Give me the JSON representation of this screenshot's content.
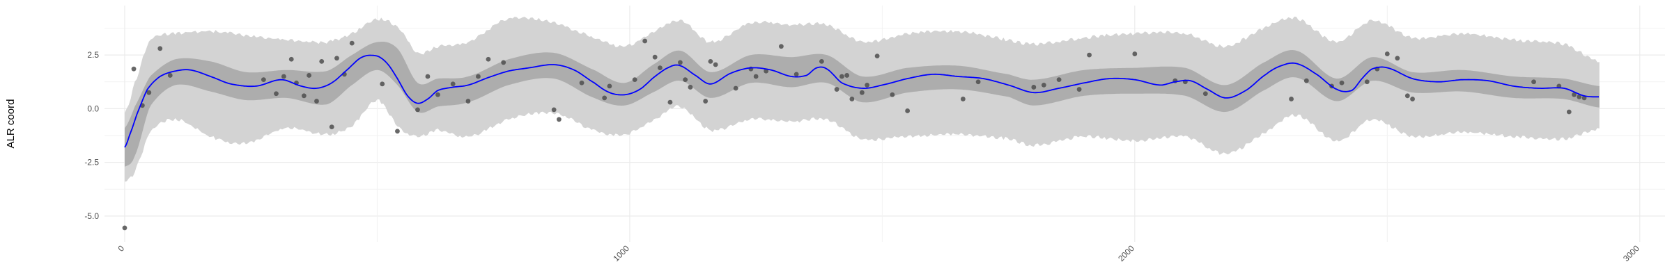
{
  "chart_data": {
    "type": "line",
    "title": "",
    "xlabel": "",
    "ylabel": "ALR coord",
    "xlim": [
      -40,
      3050
    ],
    "ylim": [
      -6.2,
      4.8
    ],
    "x_ticks": [
      0,
      1000,
      2000,
      3000
    ],
    "x_tick_labels": [
      "0",
      "1000",
      "2000",
      "3000"
    ],
    "y_ticks": [
      -5.0,
      -2.5,
      0.0,
      2.5
    ],
    "y_tick_labels": [
      "-5.0",
      "-2.5",
      "0.0",
      "2.5"
    ],
    "grid": true,
    "legend": "none",
    "colors": {
      "mean_line": "#0000ff",
      "outer_band": "#d3d3d3",
      "inner_band": "#a9a9a9",
      "points": "#4d4d4d",
      "grid": "#ebebeb"
    },
    "mean_line": {
      "x": [
        0,
        10,
        25,
        45,
        70,
        100,
        130,
        170,
        210,
        260,
        310,
        350,
        380,
        410,
        440,
        470,
        500,
        520,
        540,
        560,
        580,
        600,
        620,
        650,
        680,
        720,
        760,
        800,
        850,
        890,
        930,
        960,
        990,
        1020,
        1050,
        1080,
        1100,
        1130,
        1160,
        1200,
        1240,
        1280,
        1320,
        1350,
        1370,
        1390,
        1420,
        1460,
        1500,
        1550,
        1600,
        1650,
        1700,
        1750,
        1800,
        1850,
        1900,
        1950,
        2000,
        2050,
        2080,
        2110,
        2140,
        2180,
        2220,
        2260,
        2290,
        2320,
        2360,
        2400,
        2430,
        2450,
        2470,
        2500,
        2550,
        2600,
        2650,
        2700,
        2750,
        2800,
        2850,
        2890,
        2920
      ],
      "y": [
        -1.8,
        -1.2,
        -0.2,
        0.9,
        1.5,
        1.75,
        1.8,
        1.5,
        1.15,
        1.05,
        1.35,
        1.05,
        0.95,
        1.2,
        1.8,
        2.4,
        2.45,
        2.1,
        1.4,
        0.6,
        0.25,
        0.45,
        0.85,
        1.0,
        1.1,
        1.45,
        1.75,
        1.9,
        2.05,
        1.8,
        1.2,
        0.75,
        0.65,
        0.9,
        1.5,
        1.95,
        2.0,
        1.55,
        1.15,
        1.65,
        1.9,
        1.8,
        1.5,
        1.55,
        1.9,
        1.85,
        1.2,
        0.95,
        1.1,
        1.4,
        1.6,
        1.5,
        1.4,
        1.1,
        0.75,
        0.95,
        1.2,
        1.4,
        1.35,
        1.1,
        1.25,
        1.3,
        0.95,
        0.5,
        0.85,
        1.6,
        2.0,
        2.1,
        1.6,
        0.9,
        0.85,
        1.4,
        1.85,
        1.9,
        1.4,
        1.25,
        1.35,
        1.3,
        1.05,
        0.95,
        0.95,
        0.6,
        0.55
      ]
    },
    "inner_band": {
      "x": [
        0,
        20,
        50,
        100,
        170,
        240,
        320,
        400,
        450,
        500,
        540,
        580,
        620,
        680,
        760,
        850,
        930,
        990,
        1050,
        1100,
        1160,
        1240,
        1320,
        1390,
        1460,
        1550,
        1650,
        1750,
        1800,
        1900,
        2000,
        2100,
        2180,
        2260,
        2320,
        2400,
        2470,
        2550,
        2650,
        2750,
        2850,
        2920
      ],
      "upper": [
        -0.9,
        0.1,
        1.5,
        2.3,
        2.2,
        1.7,
        1.8,
        1.75,
        2.5,
        3.1,
        2.8,
        1.2,
        1.4,
        1.5,
        2.3,
        2.6,
        1.8,
        1.2,
        2.1,
        2.7,
        1.7,
        2.5,
        2.4,
        2.5,
        1.5,
        1.9,
        2.0,
        1.6,
        1.35,
        1.8,
        1.9,
        1.9,
        1.1,
        2.2,
        2.7,
        1.4,
        2.4,
        1.7,
        1.8,
        1.5,
        1.4,
        1.05
      ],
      "lower": [
        -2.7,
        -2.2,
        0.1,
        1.1,
        0.8,
        0.4,
        0.5,
        0.2,
        1.1,
        1.8,
        1.1,
        -0.15,
        0.1,
        0.3,
        1.1,
        1.4,
        0.5,
        0.15,
        0.8,
        1.3,
        0.5,
        1.2,
        1.0,
        1.2,
        0.3,
        0.75,
        0.9,
        0.55,
        0.15,
        0.6,
        0.7,
        0.6,
        -0.15,
        0.9,
        1.45,
        0.35,
        1.3,
        0.75,
        0.8,
        0.5,
        0.45,
        0.05
      ]
    },
    "outer_band": {
      "x": [
        0,
        20,
        50,
        100,
        170,
        240,
        320,
        400,
        450,
        500,
        540,
        580,
        620,
        680,
        760,
        850,
        930,
        990,
        1050,
        1100,
        1160,
        1240,
        1320,
        1390,
        1460,
        1550,
        1650,
        1750,
        1800,
        1900,
        2000,
        2100,
        2180,
        2260,
        2320,
        2400,
        2470,
        2550,
        2650,
        2750,
        2850,
        2920
      ],
      "upper": [
        -0.2,
        1.2,
        3.2,
        3.5,
        3.6,
        3.4,
        3.2,
        3.1,
        3.5,
        4.15,
        3.8,
        2.6,
        2.9,
        3.1,
        4.2,
        4.0,
        3.3,
        2.9,
        3.6,
        4.1,
        3.1,
        4.0,
        3.9,
        3.9,
        3.1,
        3.5,
        3.6,
        3.2,
        3.0,
        3.3,
        3.5,
        3.5,
        2.9,
        3.8,
        4.2,
        3.1,
        4.1,
        3.3,
        3.5,
        3.2,
        3.0,
        2.2
      ],
      "lower": [
        -3.4,
        -2.9,
        -1.1,
        -0.5,
        -1.3,
        -1.6,
        -0.9,
        -1.2,
        -0.8,
        0.4,
        -0.8,
        -1.3,
        -1.0,
        -1.3,
        -0.5,
        -0.2,
        -1.0,
        -1.2,
        -0.5,
        0.1,
        -1.0,
        -0.5,
        -0.6,
        -0.5,
        -1.4,
        -1.3,
        -1.2,
        -1.4,
        -1.7,
        -1.3,
        -1.5,
        -1.3,
        -2.1,
        -1.1,
        -0.3,
        -1.5,
        -0.5,
        -1.3,
        -1.1,
        -1.3,
        -1.4,
        -0.95
      ]
    },
    "points": {
      "x": [
        0,
        18,
        35,
        48,
        70,
        90,
        275,
        300,
        315,
        330,
        340,
        355,
        365,
        380,
        390,
        410,
        420,
        435,
        450,
        510,
        540,
        580,
        600,
        620,
        650,
        680,
        700,
        720,
        750,
        850,
        860,
        905,
        950,
        960,
        1010,
        1030,
        1050,
        1060,
        1080,
        1100,
        1110,
        1120,
        1150,
        1160,
        1170,
        1210,
        1240,
        1250,
        1270,
        1300,
        1330,
        1380,
        1410,
        1420,
        1430,
        1440,
        1460,
        1470,
        1490,
        1520,
        1550,
        1660,
        1690,
        1800,
        1820,
        1850,
        1890,
        1910,
        2000,
        2080,
        2100,
        2140,
        2310,
        2340,
        2390,
        2410,
        2460,
        2480,
        2500,
        2520,
        2540,
        2550,
        2790,
        2840,
        2860,
        2870,
        2880,
        2890
      ],
      "y": [
        -5.55,
        1.85,
        0.15,
        0.75,
        2.8,
        1.55,
        1.35,
        0.7,
        1.5,
        2.3,
        1.2,
        0.6,
        1.55,
        0.35,
        2.2,
        -0.85,
        2.35,
        1.6,
        3.05,
        1.15,
        -1.05,
        -0.05,
        1.5,
        0.65,
        1.15,
        0.35,
        1.5,
        2.3,
        2.15,
        -0.05,
        -0.5,
        1.2,
        0.5,
        1.05,
        1.35,
        3.15,
        2.4,
        1.9,
        0.3,
        2.15,
        1.35,
        1.0,
        0.35,
        2.2,
        2.05,
        0.95,
        1.85,
        1.5,
        1.75,
        2.9,
        1.6,
        2.2,
        0.9,
        1.5,
        1.55,
        0.45,
        0.75,
        1.1,
        2.45,
        0.65,
        -0.1,
        0.45,
        1.25,
        1.0,
        1.1,
        1.35,
        0.9,
        2.5,
        2.55,
        1.3,
        1.25,
        0.7,
        0.45,
        1.3,
        1.05,
        1.2,
        1.25,
        1.85,
        2.55,
        2.35,
        0.6,
        0.45,
        1.25,
        1.05,
        -0.15,
        0.65,
        0.55,
        0.5
      ]
    }
  }
}
